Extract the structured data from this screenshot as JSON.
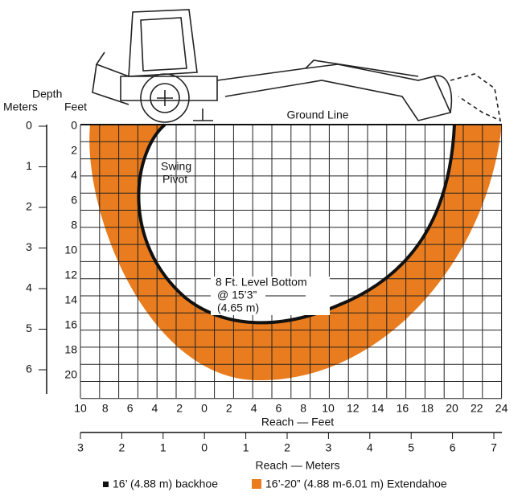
{
  "depth_axis": {
    "title": "Depth",
    "meters_label": "Meters",
    "feet_label": "Feet",
    "meters_ticks": [
      "0",
      "1",
      "2",
      "3",
      "4",
      "5",
      "6"
    ],
    "feet_ticks": [
      "0",
      "2",
      "4",
      "6",
      "8",
      "10",
      "12",
      "14",
      "16",
      "18",
      "20"
    ]
  },
  "reach_axis": {
    "feet_title": "Reach — Feet",
    "meters_title": "Reach — Meters",
    "feet_ticks": [
      "10",
      "8",
      "6",
      "4",
      "2",
      "0",
      "2",
      "4",
      "6",
      "8",
      "10",
      "12",
      "14",
      "16",
      "18",
      "20",
      "22",
      "24"
    ],
    "meters_ticks": [
      "3",
      "2",
      "1",
      "0",
      "1",
      "2",
      "3",
      "4",
      "5",
      "6",
      "7"
    ]
  },
  "annotations": {
    "ground_line": "Ground Line",
    "swing_pivot": [
      "Swing",
      "Pivot"
    ],
    "level_bottom": [
      "8 Ft. Level Bottom",
      "@ 15’3”",
      "(4.65 m)"
    ]
  },
  "legend": {
    "backhoe": "16’ (4.88 m) backhoe",
    "extendahoe": "16’-20” (4.88 m-6.01 m) Extendahoe"
  }
}
